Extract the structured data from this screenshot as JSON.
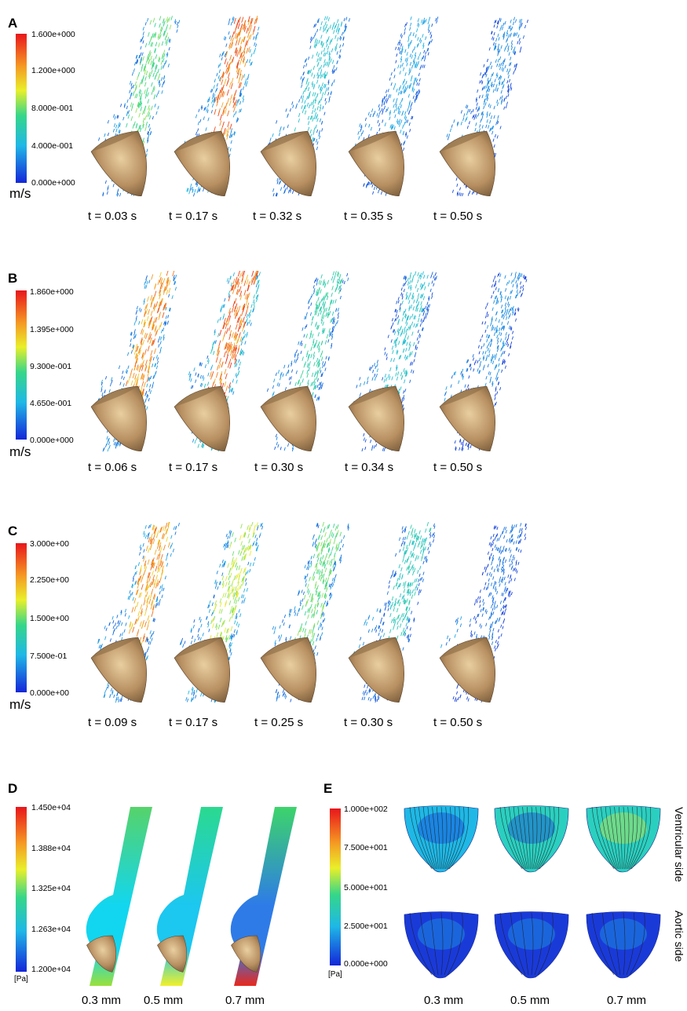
{
  "panels": {
    "A": {
      "letter": "A",
      "unit": "m/s",
      "ticks": [
        "1.600e+000",
        "1.200e+000",
        "8.000e-001",
        "4.000e-001",
        "0.000e+000"
      ],
      "times": [
        "t = 0.03 s",
        "t = 0.17 s",
        "t = 0.32 s",
        "t = 0.35 s",
        "t = 0.50 s"
      ]
    },
    "B": {
      "letter": "B",
      "unit": "m/s",
      "ticks": [
        "1.860e+000",
        "1.395e+000",
        "9.300e-001",
        "4.650e-001",
        "0.000e+000"
      ],
      "times": [
        "t = 0.06 s",
        "t = 0.17 s",
        "t = 0.30 s",
        "t = 0.34 s",
        "t = 0.50 s"
      ]
    },
    "C": {
      "letter": "C",
      "unit": "m/s",
      "ticks": [
        "3.000e+00",
        "2.250e+00",
        "1.500e+00",
        "7.500e-01",
        "0.000e+00"
      ],
      "times": [
        "t = 0.09 s",
        "t = 0.17 s",
        "t = 0.25 s",
        "t = 0.30 s",
        "t = 0.50 s"
      ]
    },
    "D": {
      "letter": "D",
      "unit": "[Pa]",
      "ticks": [
        "1.450e+04",
        "1.388e+04",
        "1.325e+04",
        "1.263e+04",
        "1.200e+04"
      ],
      "labels": [
        "0.3 mm",
        "0.5 mm",
        "0.7 mm"
      ]
    },
    "E": {
      "letter": "E",
      "unit": "[Pa]",
      "ticks": [
        "1.000e+002",
        "7.500e+001",
        "5.000e+001",
        "2.500e+001",
        "0.000e+000"
      ],
      "labels": [
        "0.3 mm",
        "0.5 mm",
        "0.7 mm"
      ],
      "side_labels": [
        "Ventricular side",
        "Aortic side"
      ]
    }
  },
  "colors": {
    "rainbow": [
      "#d7191c",
      "#fdae61",
      "#ffff00",
      "#2bd98f",
      "#00bfff",
      "#0000ff"
    ],
    "leaflet": "#b08c5c"
  }
}
